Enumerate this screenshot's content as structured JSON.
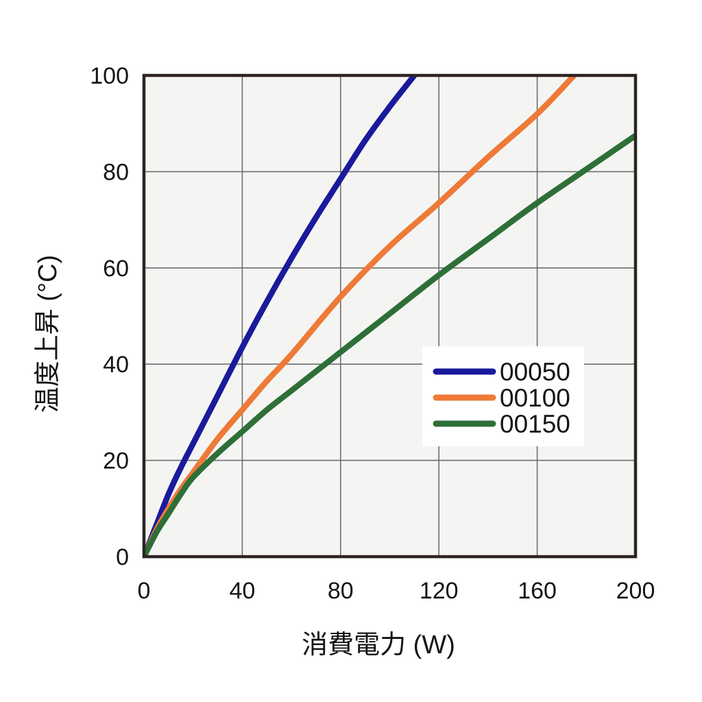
{
  "chart_data": {
    "type": "line",
    "title": "",
    "xlabel": "消費電力 (W)",
    "ylabel": "温度上昇 (°C)",
    "xlim": [
      0,
      200
    ],
    "ylim": [
      0,
      100
    ],
    "xticks": [
      0,
      40,
      80,
      120,
      160,
      200
    ],
    "yticks": [
      0,
      20,
      40,
      60,
      80,
      100
    ],
    "grid": true,
    "legend_position": "center-right",
    "series": [
      {
        "name": "00050",
        "color": "#1a1a9c",
        "points": [
          [
            0,
            0
          ],
          [
            5,
            6.5
          ],
          [
            10,
            13
          ],
          [
            15,
            18.5
          ],
          [
            20,
            23.5
          ],
          [
            30,
            33.5
          ],
          [
            40,
            43.5
          ],
          [
            50,
            53
          ],
          [
            60,
            62
          ],
          [
            70,
            70.5
          ],
          [
            80,
            78.5
          ],
          [
            90,
            86.5
          ],
          [
            100,
            93.5
          ],
          [
            110,
            100
          ]
        ]
      },
      {
        "name": "00100",
        "color": "#ee7a38",
        "points": [
          [
            0,
            0
          ],
          [
            5,
            5.5
          ],
          [
            10,
            10
          ],
          [
            15,
            14
          ],
          [
            20,
            17.5
          ],
          [
            30,
            24.5
          ],
          [
            40,
            30.5
          ],
          [
            50,
            36.5
          ],
          [
            60,
            42
          ],
          [
            80,
            54
          ],
          [
            100,
            64.5
          ],
          [
            120,
            73.5
          ],
          [
            140,
            83
          ],
          [
            160,
            92
          ],
          [
            175,
            100
          ]
        ]
      },
      {
        "name": "00150",
        "color": "#2e6f38",
        "points": [
          [
            0,
            0
          ],
          [
            5,
            5
          ],
          [
            10,
            9
          ],
          [
            15,
            13
          ],
          [
            20,
            16.5
          ],
          [
            30,
            21.5
          ],
          [
            40,
            26
          ],
          [
            50,
            30.5
          ],
          [
            60,
            34.5
          ],
          [
            80,
            42.5
          ],
          [
            100,
            50.5
          ],
          [
            120,
            58.5
          ],
          [
            140,
            66
          ],
          [
            160,
            73.5
          ],
          [
            180,
            80.5
          ],
          [
            200,
            87.5
          ]
        ]
      }
    ]
  },
  "colors": {
    "page_bg": "#ffffff",
    "plot_bg": "#f4f5f3",
    "grid": "#6e6e6e",
    "frame": "#2e2420",
    "legend_bg": "#ffffff",
    "text": "#141414"
  }
}
